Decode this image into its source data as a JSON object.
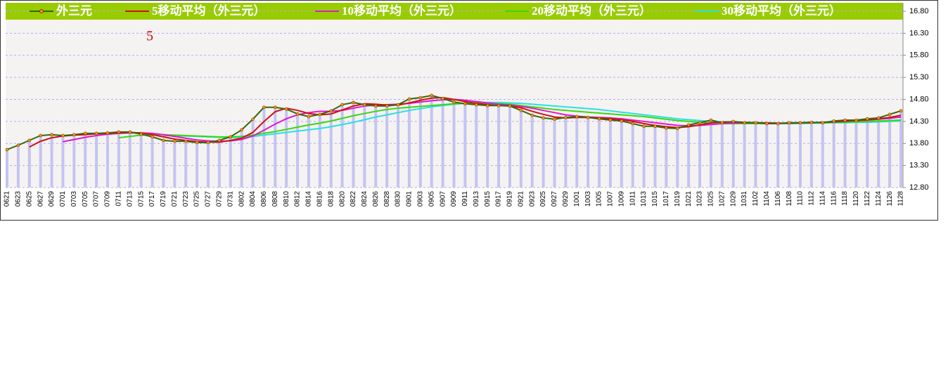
{
  "chart_data": {
    "type": "line",
    "categories": [
      "0621",
      "0623",
      "0625",
      "0627",
      "0629",
      "0701",
      "0703",
      "0705",
      "0707",
      "0709",
      "0711",
      "0713",
      "0715",
      "0717",
      "0719",
      "0721",
      "0723",
      "0725",
      "0727",
      "0729",
      "0731",
      "0802",
      "0804",
      "0806",
      "0808",
      "0810",
      "0812",
      "0814",
      "0816",
      "0818",
      "0820",
      "0822",
      "0824",
      "0826",
      "0828",
      "0830",
      "0901",
      "0903",
      "0905",
      "0907",
      "0909",
      "0911",
      "0913",
      "0915",
      "0917",
      "0919",
      "0921",
      "0923",
      "0925",
      "0927",
      "0929",
      "1001",
      "1003",
      "1005",
      "1007",
      "1009",
      "1011",
      "1013",
      "1015",
      "1017",
      "1019",
      "1021",
      "1023",
      "1025",
      "1027",
      "1029",
      "1031",
      "1102",
      "1104",
      "1106",
      "1108",
      "1110",
      "1112",
      "1114",
      "1116",
      "1118",
      "1120",
      "1122",
      "1124",
      "1126",
      "1128"
    ],
    "series": [
      {
        "name": "外三元",
        "color": "#2f6b10",
        "values": [
          13.66,
          13.76,
          13.87,
          13.98,
          14.0,
          13.98,
          14.0,
          14.03,
          14.03,
          14.04,
          14.06,
          14.06,
          14.01,
          13.95,
          13.87,
          13.85,
          13.85,
          13.82,
          13.82,
          13.87,
          13.95,
          14.11,
          14.35,
          14.62,
          14.62,
          14.58,
          14.47,
          14.41,
          14.46,
          14.54,
          14.68,
          14.73,
          14.68,
          14.65,
          14.65,
          14.68,
          14.81,
          14.84,
          14.89,
          14.82,
          14.74,
          14.7,
          14.68,
          14.66,
          14.66,
          14.65,
          14.55,
          14.44,
          14.38,
          14.35,
          14.39,
          14.41,
          14.39,
          14.36,
          14.33,
          14.31,
          14.25,
          14.19,
          14.19,
          14.15,
          14.14,
          14.22,
          14.27,
          14.33,
          14.27,
          14.3,
          14.27,
          14.27,
          14.25,
          14.25,
          14.27,
          14.27,
          14.28,
          14.27,
          14.31,
          14.33,
          14.33,
          14.36,
          14.38,
          14.46,
          14.54
        ]
      },
      {
        "name": "5移动平均（外三元）",
        "color": "#d01010",
        "values": [
          null,
          null,
          13.72,
          13.85,
          13.93,
          13.97,
          13.99,
          14.0,
          14.02,
          14.03,
          14.04,
          14.05,
          14.04,
          14.0,
          13.95,
          13.9,
          13.87,
          13.84,
          13.83,
          13.83,
          13.87,
          13.92,
          14.05,
          14.3,
          14.52,
          14.6,
          14.55,
          14.48,
          14.45,
          14.47,
          14.56,
          14.65,
          14.7,
          14.69,
          14.67,
          14.67,
          14.72,
          14.78,
          14.83,
          14.84,
          14.8,
          14.75,
          14.71,
          14.68,
          14.66,
          14.65,
          14.61,
          14.53,
          14.46,
          14.4,
          14.38,
          14.39,
          14.39,
          14.38,
          14.36,
          14.34,
          14.3,
          14.25,
          14.21,
          14.18,
          14.16,
          14.18,
          14.22,
          14.27,
          14.29,
          14.29,
          14.28,
          14.27,
          14.26,
          14.26,
          14.26,
          14.27,
          14.27,
          14.28,
          14.29,
          14.31,
          14.32,
          14.34,
          14.36,
          14.39,
          14.44
        ]
      },
      {
        "name": "10移动平均（外三元）",
        "color": "#e018c8",
        "values": [
          null,
          null,
          null,
          null,
          null,
          13.84,
          13.89,
          13.94,
          13.98,
          14.01,
          14.03,
          14.04,
          14.04,
          14.03,
          14.0,
          13.96,
          13.92,
          13.88,
          13.86,
          13.85,
          13.86,
          13.89,
          13.97,
          14.1,
          14.24,
          14.36,
          14.45,
          14.5,
          14.53,
          14.53,
          14.55,
          14.6,
          14.65,
          14.67,
          14.68,
          14.69,
          14.71,
          14.74,
          14.77,
          14.79,
          14.8,
          14.78,
          14.75,
          14.72,
          14.69,
          14.67,
          14.64,
          14.6,
          14.55,
          14.5,
          14.45,
          14.42,
          14.4,
          14.39,
          14.38,
          14.36,
          14.33,
          14.3,
          14.27,
          14.24,
          14.21,
          14.2,
          14.21,
          14.23,
          14.25,
          14.26,
          14.27,
          14.27,
          14.27,
          14.26,
          14.26,
          14.27,
          14.27,
          14.28,
          14.29,
          14.3,
          14.32,
          14.33,
          14.35,
          14.37,
          14.4
        ]
      },
      {
        "name": "20移动平均（外三元）",
        "color": "#38d810",
        "values": [
          null,
          null,
          null,
          null,
          null,
          null,
          null,
          null,
          null,
          null,
          13.93,
          13.96,
          13.99,
          14.0,
          14.0,
          13.99,
          13.98,
          13.97,
          13.96,
          13.95,
          13.95,
          13.96,
          13.99,
          14.03,
          14.07,
          14.12,
          14.17,
          14.22,
          14.26,
          14.31,
          14.37,
          14.43,
          14.48,
          14.53,
          14.57,
          14.6,
          14.62,
          14.64,
          14.66,
          14.68,
          14.7,
          14.71,
          14.72,
          14.71,
          14.7,
          14.69,
          14.66,
          14.63,
          14.6,
          14.57,
          14.55,
          14.53,
          14.51,
          14.49,
          14.47,
          14.45,
          14.43,
          14.41,
          14.38,
          14.35,
          14.32,
          14.3,
          14.28,
          14.26,
          14.25,
          14.25,
          14.25,
          14.25,
          14.25,
          14.25,
          14.26,
          14.26,
          14.27,
          14.27,
          14.28,
          14.28,
          14.29,
          14.3,
          14.31,
          14.32,
          14.33
        ]
      },
      {
        "name": "30移动平均（外三元）",
        "color": "#28e0e0",
        "values": [
          null,
          null,
          null,
          null,
          null,
          null,
          null,
          null,
          null,
          null,
          null,
          null,
          null,
          null,
          13.98,
          13.97,
          13.97,
          13.96,
          13.95,
          13.94,
          13.93,
          13.94,
          13.96,
          13.99,
          14.02,
          14.05,
          14.08,
          14.11,
          14.14,
          14.18,
          14.23,
          14.28,
          14.34,
          14.4,
          14.45,
          14.5,
          14.55,
          14.59,
          14.63,
          14.66,
          14.69,
          14.71,
          14.72,
          14.73,
          14.73,
          14.72,
          14.71,
          14.69,
          14.67,
          14.65,
          14.63,
          14.61,
          14.59,
          14.57,
          14.54,
          14.51,
          14.48,
          14.45,
          14.42,
          14.39,
          14.36,
          14.34,
          14.32,
          14.3,
          14.29,
          14.28,
          14.27,
          14.26,
          14.25,
          14.25,
          14.25,
          14.25,
          14.26,
          14.26,
          14.27,
          14.27,
          14.28,
          14.28,
          14.29,
          14.3,
          14.31
        ]
      }
    ],
    "bar_color": "#c4c4f2",
    "ylim": [
      12.8,
      16.8
    ],
    "yticks": [
      {
        "value": 12.8,
        "label": "12.80"
      },
      {
        "value": 13.3,
        "label": "13.30"
      },
      {
        "value": 13.8,
        "label": "13.80"
      },
      {
        "value": 14.3,
        "label": "14.30"
      },
      {
        "value": 14.8,
        "label": "14.80"
      },
      {
        "value": 15.3,
        "label": "15.30"
      },
      {
        "value": 15.8,
        "label": "15.80"
      },
      {
        "value": 16.3,
        "label": "16.30"
      },
      {
        "value": 16.8,
        "label": "16.80"
      }
    ],
    "grid": true,
    "legend_position": "top",
    "annotations": [
      {
        "text": "5"
      }
    ]
  }
}
